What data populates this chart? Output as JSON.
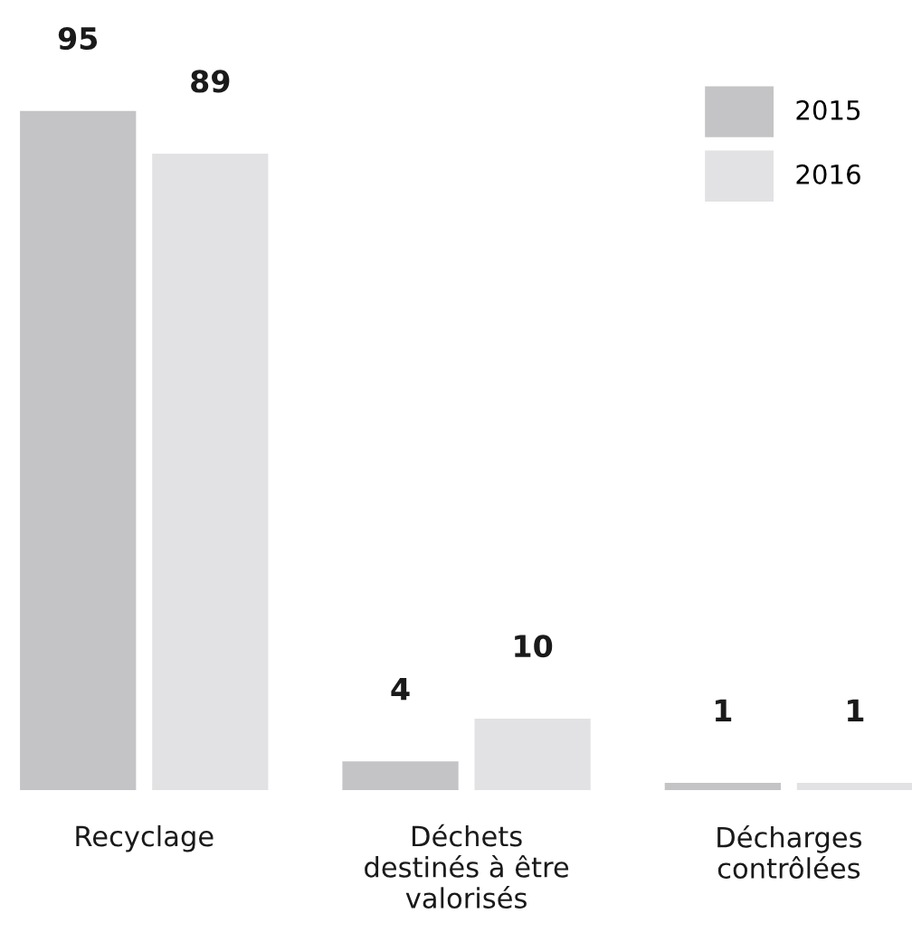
{
  "chart_data": {
    "type": "bar",
    "categories": [
      "Recyclage",
      "Déchets\ndestinés à être\nvalorisés",
      "Décharges\ncontrôlées"
    ],
    "series": [
      {
        "name": "2015",
        "color": "#c4c4c6",
        "values": [
          95,
          4,
          1
        ]
      },
      {
        "name": "2016",
        "color": "#e2e2e4",
        "values": [
          89,
          10,
          1
        ]
      }
    ],
    "data_labels": true,
    "legend": "top right",
    "grid": false
  }
}
